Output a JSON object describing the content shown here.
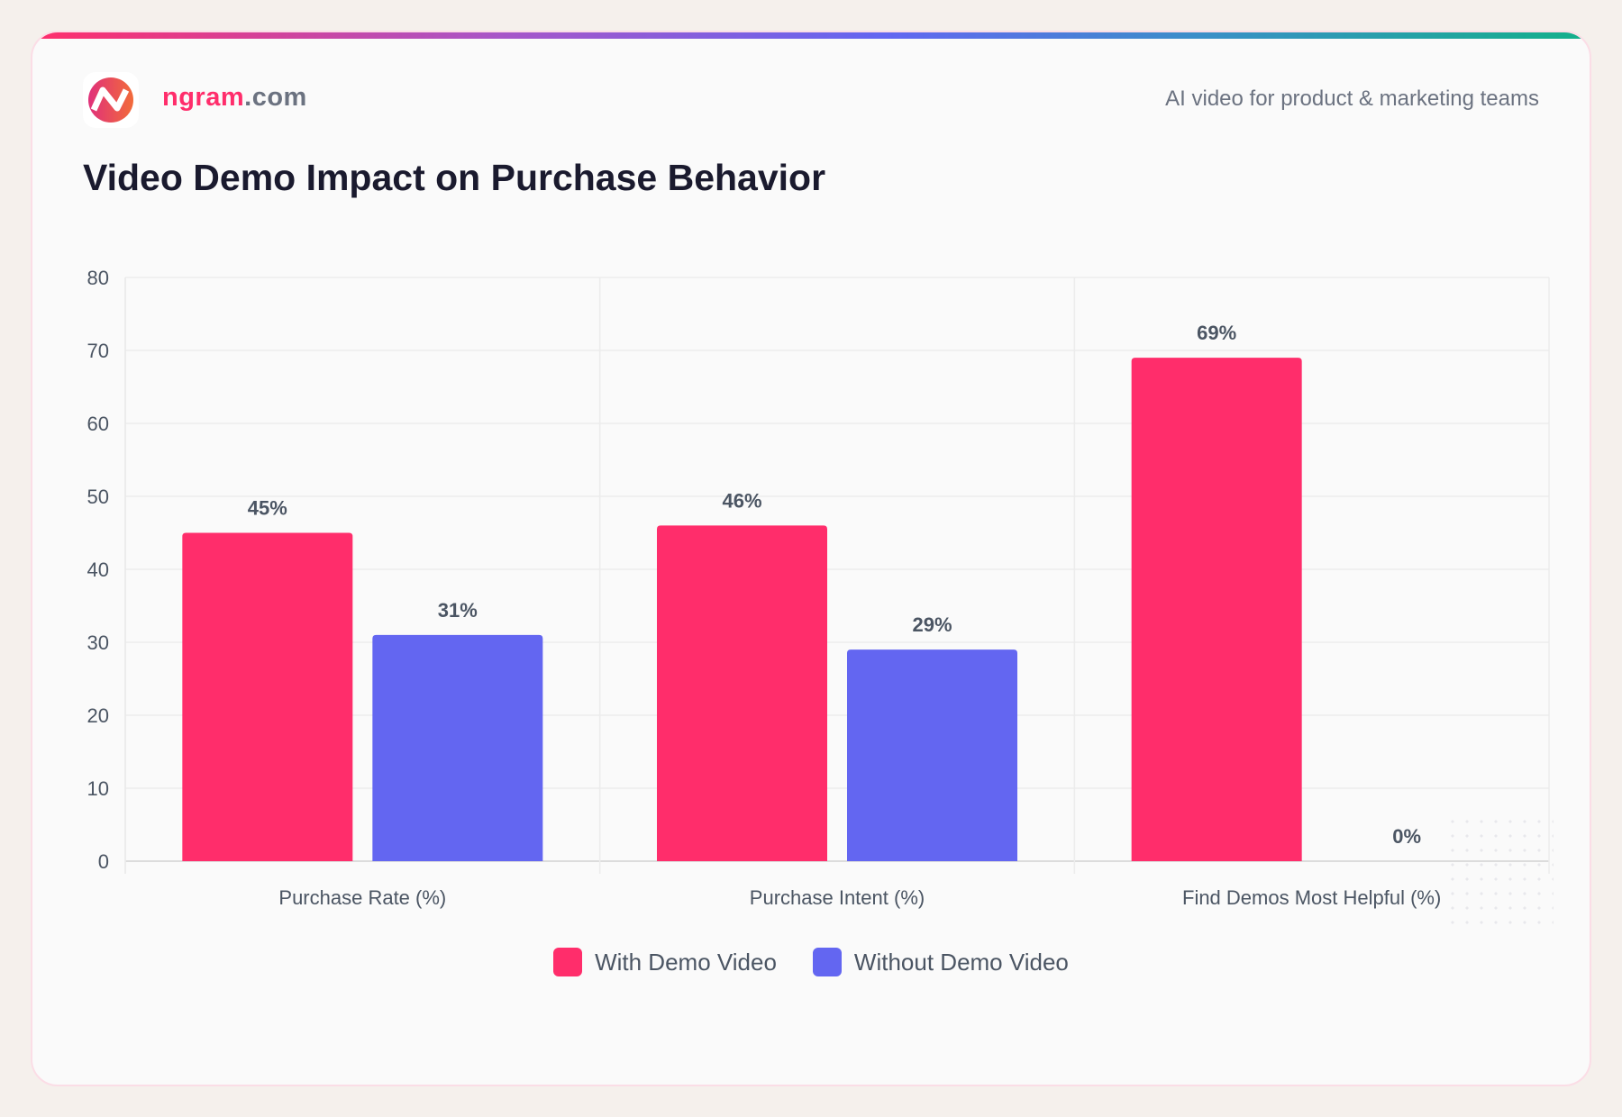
{
  "header": {
    "brand_name": "ngram",
    "brand_suffix": ".com",
    "tagline": "AI video for product & marketing teams",
    "logo_icon": "ngram-logo"
  },
  "colors": {
    "with": "#ff2d6b",
    "without": "#6366f1",
    "accent": "#ff2d6b"
  },
  "chart_data": {
    "type": "bar",
    "title": "Video Demo Impact on Purchase Behavior",
    "categories": [
      "Purchase Rate (%)",
      "Purchase Intent (%)",
      "Find Demos Most Helpful (%)"
    ],
    "series": [
      {
        "name": "With Demo Video",
        "values": [
          45,
          46,
          69
        ],
        "labels": [
          "45%",
          "46%",
          "69%"
        ],
        "color": "#ff2d6b"
      },
      {
        "name": "Without Demo Video",
        "values": [
          31,
          29,
          0
        ],
        "labels": [
          "31%",
          "29%",
          "0%"
        ],
        "color": "#6366f1"
      }
    ],
    "ylim": [
      0,
      80
    ],
    "yticks": [
      "0",
      "10",
      "20",
      "30",
      "40",
      "50",
      "60",
      "70",
      "80"
    ],
    "grid": true,
    "legend": "bottom"
  }
}
